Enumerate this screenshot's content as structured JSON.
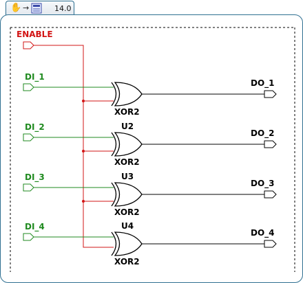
{
  "tab": {
    "zoom": "14.0",
    "hand_icon": "hand-pan-icon",
    "arrow_icon": "arrow-right-icon",
    "sheet_icon": "schematic-sheet-icon"
  },
  "colors": {
    "accent_border": "#2e6f91",
    "input_wire": "#1f8a1f",
    "enable_wire": "#d21414",
    "gate": "#000000"
  },
  "schematic": {
    "enable_label": "ENABLE",
    "inputs": [
      "DI_1",
      "DI_2",
      "DI_3",
      "DI_4"
    ],
    "outputs": [
      "DO_1",
      "DO_2",
      "DO_3",
      "DO_4"
    ],
    "gates": [
      {
        "instance": "",
        "type": "XOR2"
      },
      {
        "instance": "U2",
        "type": "XOR2"
      },
      {
        "instance": "U3",
        "type": "XOR2"
      },
      {
        "instance": "U4",
        "type": "XOR2"
      }
    ]
  }
}
